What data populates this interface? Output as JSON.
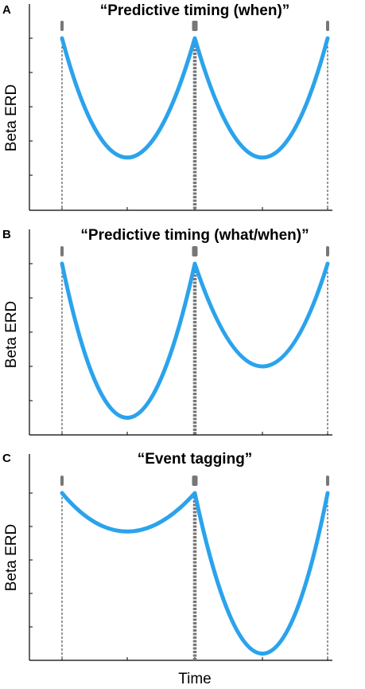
{
  "panels": [
    {
      "label": "A",
      "title": "“Predictive timing (when)”",
      "ylabel": "Beta ERD",
      "troughs": [
        0.3,
        0.3
      ]
    },
    {
      "label": "B",
      "title": "“Predictive timing (what/when)”",
      "ylabel": "Beta ERD",
      "troughs": [
        0.1,
        0.4
      ]
    },
    {
      "label": "C",
      "title": "“Event tagging”",
      "ylabel": "Beta ERD",
      "troughs": [
        0.77,
        0.04
      ]
    }
  ],
  "xlabel": "Time",
  "colors": {
    "curve": "#2ba3ec",
    "event_line": "#777777",
    "marker": "#777777"
  },
  "chart_data": [
    {
      "type": "line",
      "title": "“Predictive timing (when)”",
      "ylabel": "Beta ERD",
      "x": [
        0,
        0.5,
        1,
        1.5,
        2
      ],
      "values": [
        1,
        0.3,
        1,
        0.3,
        1
      ],
      "events": [
        0,
        1,
        2
      ]
    },
    {
      "type": "line",
      "title": "“Predictive timing (what/when)”",
      "ylabel": "Beta ERD",
      "x": [
        0,
        0.5,
        1,
        1.5,
        2
      ],
      "values": [
        1,
        0.1,
        1,
        0.4,
        1
      ],
      "events": [
        0,
        1,
        2
      ]
    },
    {
      "type": "line",
      "title": "“Event tagging”",
      "ylabel": "Beta ERD",
      "xlabel": "Time",
      "x": [
        0,
        0.5,
        1,
        1.5,
        2
      ],
      "values": [
        1,
        0.77,
        1,
        0.04,
        1
      ],
      "events": [
        0,
        1,
        2
      ]
    }
  ]
}
